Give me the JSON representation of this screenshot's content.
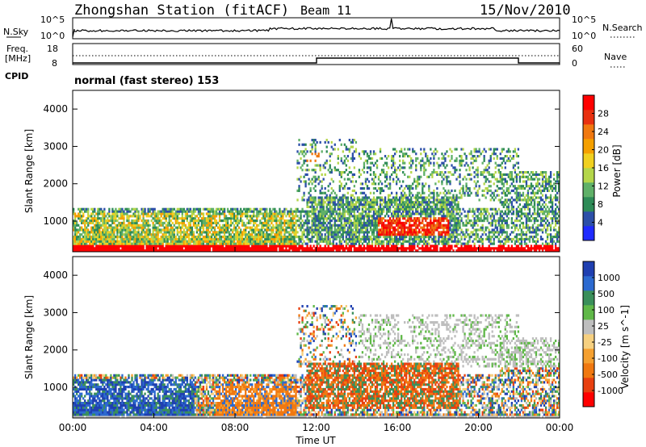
{
  "header": {
    "station": "Zhongshan Station (fitACF)",
    "beam": "Beam 11",
    "date": "15/Nov/2010"
  },
  "nsky_panel": {
    "left_label": "N.Sky",
    "right_label": "N.Search",
    "left_ticks": [
      "10^5",
      "10^0"
    ],
    "right_ticks": [
      "10^5",
      "10^0"
    ]
  },
  "freq_panel": {
    "left_label_line1": "Freq.",
    "left_label_line2": "[MHz]",
    "left_ticks": [
      "18",
      "8"
    ],
    "right_label": "Nave",
    "right_ticks": [
      "60",
      "0"
    ]
  },
  "cpid": {
    "label": "CPID",
    "program": "normal (fast stereo) 153"
  },
  "chart_data": [
    {
      "type": "heatmap",
      "title": "",
      "xlabel": "Time UT",
      "ylabel": "Slant Range [km]",
      "x_ticks": [
        "00:00",
        "04:00",
        "08:00",
        "12:00",
        "16:00",
        "20:00",
        "00:00"
      ],
      "y_ticks": [
        "1000",
        "2000",
        "3000",
        "4000"
      ],
      "y_range_km": [
        180,
        4500
      ],
      "colorbar": {
        "label": "Power [dB]",
        "ticks": [
          "4",
          "8",
          "12",
          "16",
          "20",
          "24",
          "28"
        ],
        "colors": [
          "#1f2bff",
          "#2c4fa8",
          "#2e8b57",
          "#5fb068",
          "#b4d64a",
          "#f0d020",
          "#f5a000",
          "#f07810",
          "#e83010",
          "#ff0000"
        ]
      }
    },
    {
      "type": "heatmap",
      "title": "",
      "xlabel": "Time UT",
      "ylabel": "Slant Range [km]",
      "x_ticks": [
        "00:00",
        "04:00",
        "08:00",
        "12:00",
        "16:00",
        "20:00",
        "00:00"
      ],
      "y_ticks": [
        "1000",
        "2000",
        "3000",
        "4000"
      ],
      "y_range_km": [
        180,
        4500
      ],
      "colorbar": {
        "label": "Velocity [m s^-1]",
        "ticks": [
          "1000",
          "500",
          "100",
          "25",
          "-25",
          "-100",
          "-500",
          "-1000"
        ],
        "colors": [
          "#1f3fb0",
          "#2c6ad0",
          "#3a8f5a",
          "#60b848",
          "#bebebe",
          "#f6d080",
          "#f5a030",
          "#f07810",
          "#e84010",
          "#ff0000"
        ]
      }
    }
  ]
}
